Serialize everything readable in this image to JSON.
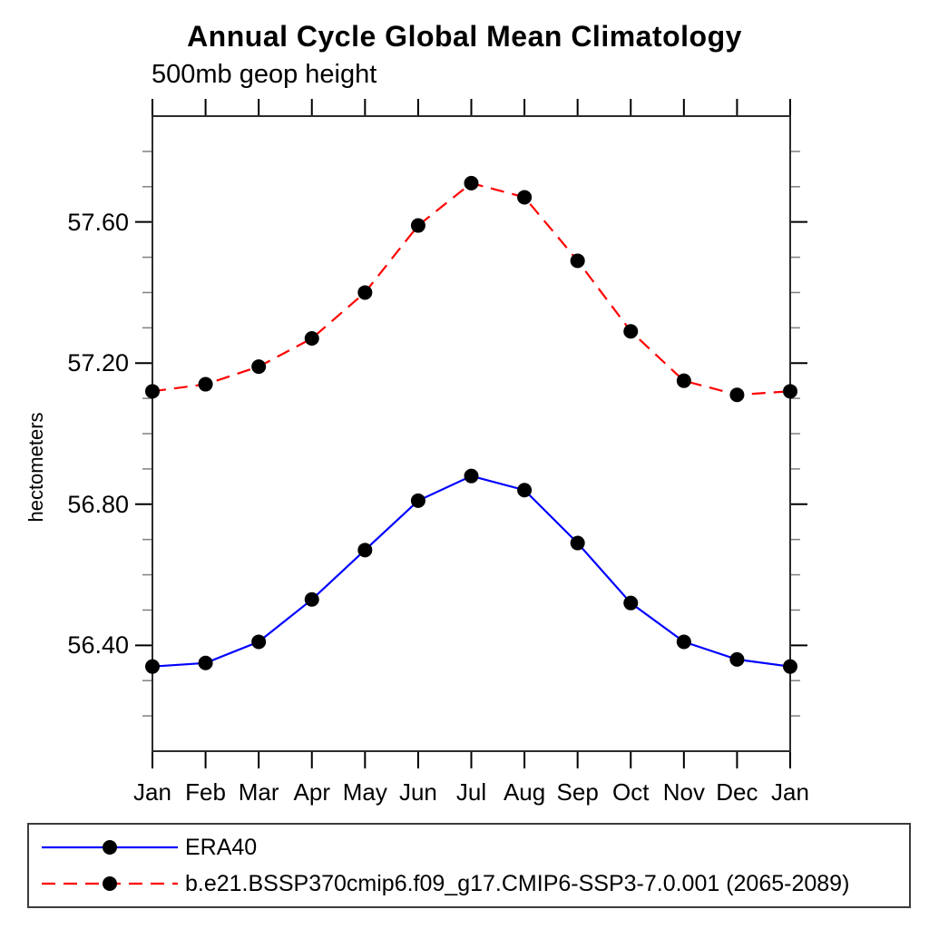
{
  "chart_data": {
    "type": "line",
    "title": "Annual Cycle Global Mean Climatology",
    "subtitle": "500mb geop height",
    "xlabel": "",
    "ylabel": "hectometers",
    "categories": [
      "Jan",
      "Feb",
      "Mar",
      "Apr",
      "May",
      "Jun",
      "Jul",
      "Aug",
      "Sep",
      "Oct",
      "Nov",
      "Dec",
      "Jan"
    ],
    "series": [
      {
        "name": "ERA40",
        "color": "#0000ff",
        "line_style": "solid",
        "marker": "filled-circle",
        "marker_color": "#000000",
        "values": [
          56.34,
          56.35,
          56.41,
          56.53,
          56.67,
          56.81,
          56.88,
          56.84,
          56.69,
          56.52,
          56.41,
          56.36,
          56.34
        ]
      },
      {
        "name": "b.e21.BSSP370cmip6.f09_g17.CMIP6-SSP3-7.0.001 (2065-2089)",
        "color": "#ff0000",
        "line_style": "dashed",
        "marker": "filled-circle",
        "marker_color": "#000000",
        "values": [
          57.12,
          57.14,
          57.19,
          57.27,
          57.4,
          57.59,
          57.71,
          57.67,
          57.49,
          57.29,
          57.15,
          57.11,
          57.12
        ]
      }
    ],
    "ylim": [
      56.1,
      57.9
    ],
    "y_major_ticks": [
      56.4,
      56.8,
      57.2,
      57.6
    ],
    "y_tick_labels": [
      "56.40",
      "56.80",
      "57.20",
      "57.60"
    ],
    "y_minor_interval": 0.1,
    "grid": false,
    "legend_position": "bottom-left-box",
    "frame_color": "#2b2b2b",
    "minor_tick_color": "#808080"
  }
}
